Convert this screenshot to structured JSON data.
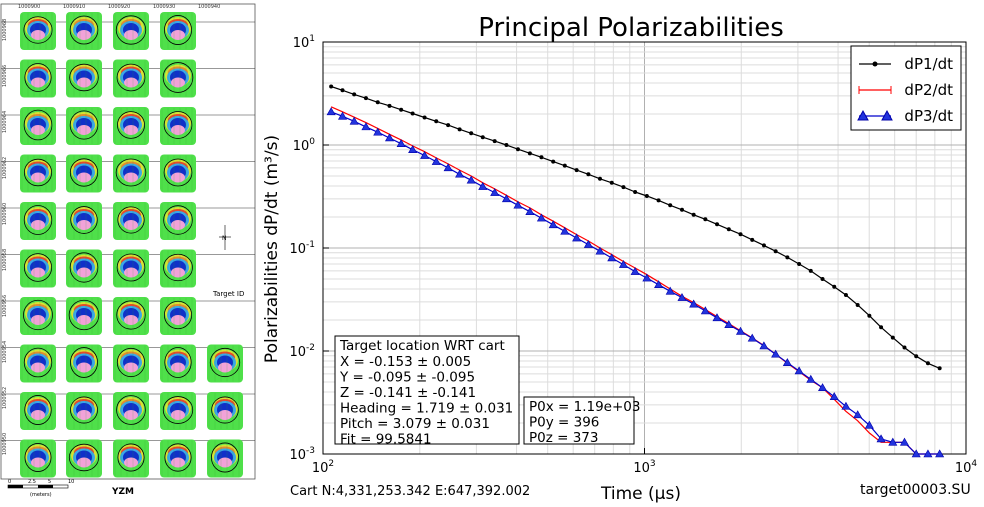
{
  "map": {
    "target_label": "Target ID",
    "scale_label": "YZM",
    "scale_sub": "(meters)",
    "scale_ticks": [
      "0",
      "2.5",
      "5",
      "10"
    ],
    "x_ticks": [
      "1000900",
      "1000910",
      "1000920",
      "1000930",
      "1000940"
    ],
    "y_ticks": [
      "1000968",
      "1000966",
      "1000964",
      "1000962",
      "1000960",
      "1000958",
      "1000956",
      "1000954",
      "1000952",
      "1000950"
    ],
    "north_label": "N"
  },
  "chart_data": {
    "type": "line",
    "title": "Principal Polarizabilities",
    "xlabel": "Time (μs)",
    "ylabel": "Polarizabilities dP/dt (m³/s)",
    "xscale": "log",
    "yscale": "log",
    "xlim": [
      100,
      10000
    ],
    "ylim": [
      0.001,
      10
    ],
    "x_tick_labels": [
      {
        "base": "10",
        "exp": "2"
      },
      {
        "base": "10",
        "exp": "3"
      },
      {
        "base": "10",
        "exp": "4"
      }
    ],
    "y_tick_labels": [
      {
        "base": "10",
        "exp": "1"
      },
      {
        "base": "10",
        "exp": "0"
      },
      {
        "base": "10",
        "exp": "-1"
      },
      {
        "base": "10",
        "exp": "-2"
      },
      {
        "base": "10",
        "exp": "-3"
      }
    ],
    "grid": true,
    "legend_position": "top-right",
    "series": [
      {
        "name": "dP1/dt",
        "color": "#000000",
        "marker": "dot",
        "x": [
          106,
          115,
          125,
          136,
          148,
          161,
          175,
          190,
          207,
          225,
          245,
          266,
          289,
          314,
          342,
          372,
          404,
          440,
          478,
          520,
          565,
          615,
          669,
          727,
          791,
          860,
          935,
          1017,
          1106,
          1202,
          1308,
          1422,
          1546,
          1681,
          1829,
          1989,
          2163,
          2352,
          2558,
          2782,
          3026,
          3290,
          3579,
          3892,
          4232,
          4603,
          5005,
          5443,
          5920,
          6437,
          7000,
          7614,
          8280
        ],
        "y": [
          3.7,
          3.4,
          3.1,
          2.85,
          2.6,
          2.4,
          2.2,
          2.02,
          1.85,
          1.7,
          1.56,
          1.42,
          1.3,
          1.19,
          1.09,
          1.0,
          0.91,
          0.83,
          0.76,
          0.69,
          0.63,
          0.57,
          0.52,
          0.47,
          0.43,
          0.39,
          0.35,
          0.32,
          0.29,
          0.26,
          0.235,
          0.21,
          0.19,
          0.17,
          0.152,
          0.136,
          0.12,
          0.106,
          0.093,
          0.081,
          0.07,
          0.06,
          0.05,
          0.042,
          0.035,
          0.028,
          0.022,
          0.017,
          0.0135,
          0.0108,
          0.0089,
          0.0076,
          0.0068
        ]
      },
      {
        "name": "dP2/dt",
        "color": "#ff0000",
        "marker": "line",
        "x": [
          106,
          115,
          125,
          136,
          148,
          161,
          175,
          190,
          207,
          225,
          245,
          266,
          289,
          314,
          342,
          372,
          404,
          440,
          478,
          520,
          565,
          615,
          669,
          727,
          791,
          860,
          935,
          1017,
          1106,
          1202,
          1308,
          1422,
          1546,
          1681,
          1829,
          1989,
          2163,
          2352,
          2558,
          2782,
          3026,
          3290,
          3579,
          3892,
          4232,
          4603,
          5005,
          5443,
          5920,
          6437,
          7000,
          7614,
          8280
        ],
        "y": [
          2.35,
          2.1,
          1.86,
          1.65,
          1.45,
          1.27,
          1.12,
          0.98,
          0.86,
          0.75,
          0.655,
          0.57,
          0.5,
          0.43,
          0.375,
          0.325,
          0.28,
          0.245,
          0.21,
          0.182,
          0.157,
          0.135,
          0.117,
          0.1,
          0.086,
          0.074,
          0.064,
          0.055,
          0.047,
          0.04,
          0.034,
          0.0295,
          0.0253,
          0.0216,
          0.0184,
          0.0157,
          0.0134,
          0.0113,
          0.0093,
          0.0076,
          0.0063,
          0.0052,
          0.0044,
          0.0034,
          0.0026,
          0.0021,
          0.0016,
          0.0013,
          0.0013,
          0.0013,
          0.001,
          0.001,
          0.001
        ]
      },
      {
        "name": "dP3/dt",
        "color": "#0000cc",
        "marker": "triangle",
        "x": [
          106,
          115,
          125,
          136,
          148,
          161,
          175,
          190,
          207,
          225,
          245,
          266,
          289,
          314,
          342,
          372,
          404,
          440,
          478,
          520,
          565,
          615,
          669,
          727,
          791,
          860,
          935,
          1017,
          1106,
          1202,
          1308,
          1422,
          1546,
          1681,
          1829,
          1989,
          2163,
          2352,
          2558,
          2782,
          3026,
          3290,
          3579,
          3892,
          4232,
          4603,
          5005,
          5443,
          5920,
          6437,
          7000,
          7614,
          8280
        ],
        "y": [
          2.1,
          1.9,
          1.7,
          1.5,
          1.33,
          1.17,
          1.03,
          0.9,
          0.79,
          0.69,
          0.6,
          0.52,
          0.455,
          0.395,
          0.345,
          0.3,
          0.26,
          0.225,
          0.195,
          0.168,
          0.145,
          0.125,
          0.108,
          0.093,
          0.08,
          0.069,
          0.059,
          0.051,
          0.044,
          0.038,
          0.033,
          0.0285,
          0.0245,
          0.021,
          0.018,
          0.0155,
          0.0133,
          0.0112,
          0.0093,
          0.0077,
          0.0064,
          0.0053,
          0.0044,
          0.0036,
          0.0029,
          0.0024,
          0.0019,
          0.0014,
          0.0013,
          0.0013,
          0.001,
          0.001,
          0.001
        ]
      }
    ]
  },
  "info_box_left": {
    "heading": "Target location WRT cart",
    "lines": [
      "X = -0.153 ± 0.005",
      "Y = -0.095 ± -0.095",
      "Z = -0.141 ± -0.141",
      "Heading = 1.719 ± 0.031",
      "Pitch = 3.079 ± 0.031",
      "Fit = 99.5841"
    ]
  },
  "info_box_right": {
    "lines": [
      "P0x = 1.19e+03",
      "P0y = 396",
      "P0z = 373"
    ]
  },
  "footer": {
    "cart_position": "Cart N:4,331,253.342 E:647,392.002",
    "target_file": "target00003.SU"
  }
}
